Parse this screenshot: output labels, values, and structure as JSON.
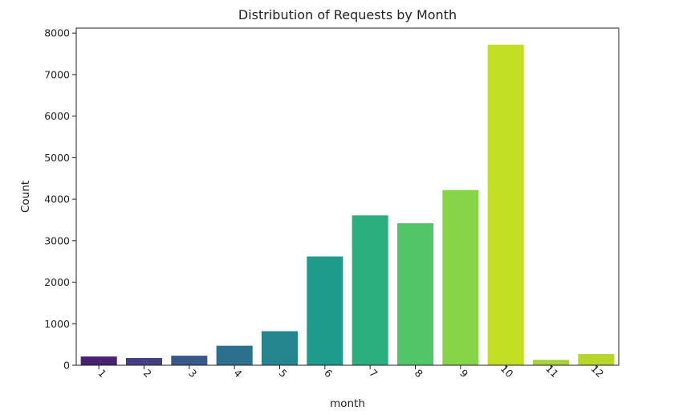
{
  "chart_data": {
    "type": "bar",
    "title": "Distribution of Requests by Month",
    "xlabel": "month",
    "ylabel": "Count",
    "categories": [
      "1",
      "2",
      "3",
      "4",
      "5",
      "6",
      "7",
      "8",
      "9",
      "10",
      "11",
      "12"
    ],
    "values": [
      210,
      175,
      230,
      470,
      820,
      2620,
      3610,
      3420,
      4220,
      7720,
      130,
      270
    ],
    "ylim": [
      0,
      8120
    ],
    "yticks": [
      0,
      1000,
      2000,
      3000,
      4000,
      5000,
      6000,
      7000,
      8000
    ],
    "ytick_labels": [
      "0",
      "1000",
      "2000",
      "3000",
      "4000",
      "5000",
      "6000",
      "7000",
      "8000"
    ],
    "xtick_rotation": "45 degrees",
    "grid": false,
    "legend": "none",
    "colors": [
      "#482173",
      "#433e85",
      "#38588c",
      "#2d708e",
      "#25858e",
      "#1e9b8a",
      "#2ab07f",
      "#52c569",
      "#86d549",
      "#c2df23",
      "#a8d23a",
      "#b7d62a"
    ]
  }
}
